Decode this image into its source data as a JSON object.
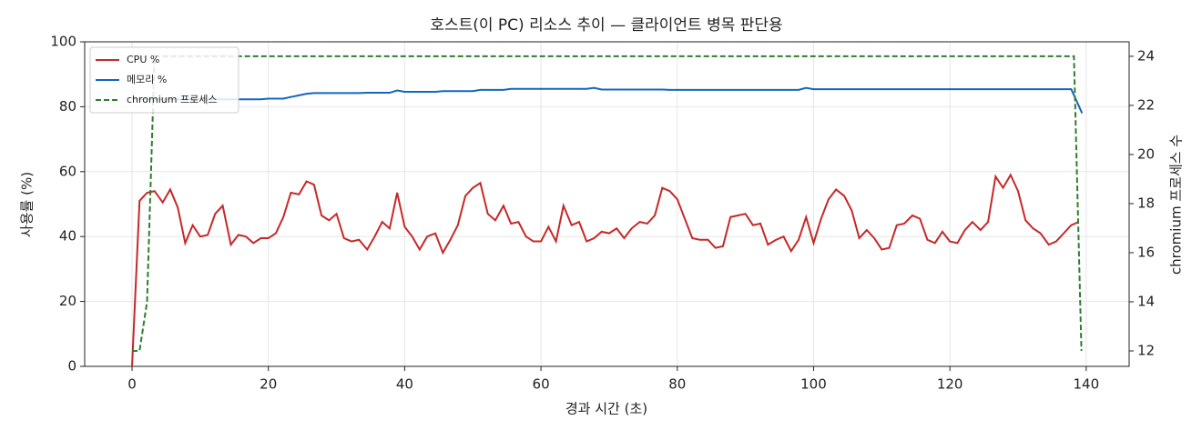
{
  "chart_data": {
    "type": "line",
    "title": "호스트(이 PC) 리소스 추이 — 클라이언트 병목 판단용",
    "x_label": "경과 시간 (초)",
    "y_label": "사용률 (%)",
    "y2_label": "chromium 프로세스 수",
    "xlim": [
      -6.95,
      146.3
    ],
    "xticks": [
      0,
      20,
      40,
      60,
      80,
      100,
      120,
      140
    ],
    "ylim": [
      0,
      100
    ],
    "yticks": [
      0,
      20,
      40,
      60,
      80,
      100
    ],
    "y2lim": [
      11.37,
      24.59
    ],
    "y2ticks": [
      12,
      14,
      16,
      18,
      20,
      22,
      24
    ],
    "grid": true,
    "legend": "upper left",
    "series": [
      {
        "name": "CPU %",
        "color": "#c62828",
        "linestyle": "solid",
        "axis": "y",
        "x": [
          0,
          1.1,
          2.2,
          3.3,
          4.5,
          5.6,
          6.7,
          7.8,
          8.9,
          10,
          11.1,
          12.2,
          13.3,
          14.5,
          15.6,
          16.7,
          17.8,
          18.9,
          20,
          21.1,
          22.2,
          23.3,
          24.5,
          25.6,
          26.7,
          27.8,
          28.9,
          30,
          31.1,
          32.2,
          33.3,
          34.5,
          35.6,
          36.7,
          37.8,
          38.9,
          40,
          41.1,
          42.2,
          43.3,
          44.5,
          45.6,
          46.7,
          47.8,
          48.9,
          50,
          51.1,
          52.2,
          53.3,
          54.5,
          55.6,
          56.7,
          57.8,
          58.9,
          60,
          61.1,
          62.2,
          63.3,
          64.5,
          65.6,
          66.7,
          67.8,
          68.9,
          70,
          71.1,
          72.2,
          73.3,
          74.5,
          75.6,
          76.7,
          77.8,
          78.9,
          80,
          81.1,
          82.2,
          83.3,
          84.5,
          85.6,
          86.7,
          87.8,
          88.9,
          90,
          91.1,
          92.2,
          93.3,
          94.5,
          95.6,
          96.7,
          97.8,
          98.9,
          100,
          101.1,
          102.2,
          103.3,
          104.5,
          105.6,
          106.7,
          107.8,
          108.9,
          110,
          111.1,
          112.2,
          113.3,
          114.5,
          115.6,
          116.7,
          117.8,
          118.9,
          120,
          121.1,
          122.2,
          123.3,
          124.5,
          125.6,
          126.7,
          127.8,
          128.9,
          130,
          131.1,
          132.2,
          133.3,
          134.5,
          135.6,
          136.7,
          137.8,
          138.9
        ],
        "values": [
          0,
          51,
          53.5,
          54,
          50.5,
          54.5,
          49,
          38,
          43.5,
          40,
          40.5,
          47,
          49.5,
          37.5,
          40.5,
          40,
          38,
          39.5,
          39.5,
          41,
          46,
          53.5,
          53,
          57,
          56,
          46.5,
          45,
          47,
          39.5,
          38.5,
          39,
          36,
          40,
          44.5,
          42.5,
          53.5,
          43,
          40,
          36,
          40,
          41,
          35,
          39,
          43.5,
          52.5,
          55,
          56.5,
          47,
          45,
          49.5,
          44,
          44.5,
          40,
          38.5,
          38.5,
          43,
          38.5,
          49.5,
          43.5,
          44.5,
          38.5,
          39.5,
          41.5,
          41,
          42.5,
          39.5,
          42.5,
          44.5,
          44,
          46.5,
          55,
          54,
          51.5,
          45.5,
          39.5,
          39,
          39,
          36.5,
          37,
          46,
          46.5,
          47,
          43.5,
          44,
          37.5,
          39,
          40,
          35.5,
          39,
          46,
          38,
          45.5,
          51.5,
          54.5,
          52.5,
          48,
          39.5,
          42,
          39.5,
          36,
          36.5,
          43.5,
          44,
          46.5,
          45.5,
          39,
          38,
          41.5,
          38.5,
          38,
          42,
          44.5,
          42,
          44.5,
          58.5,
          55,
          59,
          54,
          45,
          42.5,
          41,
          37.5,
          38.5,
          41,
          43.5,
          44.5
        ]
      },
      {
        "name": "메모리 %",
        "color": "#1565c0",
        "linestyle": "solid",
        "axis": "y",
        "x": [
          0,
          1.1,
          2.2,
          3.3,
          4.5,
          5.6,
          6.7,
          7.8,
          8.9,
          10,
          11.1,
          12.2,
          13.3,
          14.5,
          15.6,
          16.7,
          17.8,
          18.9,
          20,
          21.1,
          22.2,
          23.3,
          24.5,
          25.6,
          26.7,
          27.8,
          28.9,
          30,
          31.1,
          32.2,
          33.3,
          34.5,
          35.6,
          36.7,
          37.8,
          38.9,
          40,
          41.1,
          42.2,
          43.3,
          44.5,
          45.6,
          46.7,
          47.8,
          48.9,
          50,
          51.1,
          52.2,
          53.3,
          54.5,
          55.6,
          56.7,
          57.8,
          58.9,
          60,
          61.1,
          62.2,
          63.3,
          64.5,
          65.6,
          66.7,
          67.8,
          68.9,
          70,
          71.1,
          72.2,
          73.3,
          74.5,
          75.6,
          76.7,
          77.8,
          78.9,
          80,
          81.1,
          82.2,
          83.3,
          84.5,
          85.6,
          86.7,
          87.8,
          88.9,
          90,
          91.1,
          92.2,
          93.3,
          94.5,
          95.6,
          96.7,
          97.8,
          98.9,
          100,
          101.1,
          102.2,
          103.3,
          104.5,
          105.6,
          106.7,
          107.8,
          108.9,
          110,
          111.1,
          112.2,
          113.3,
          114.5,
          115.6,
          116.7,
          117.8,
          118.9,
          120,
          121.1,
          122.2,
          123.3,
          124.5,
          125.6,
          126.7,
          127.8,
          128.9,
          130,
          131.1,
          132.2,
          133.3,
          134.5,
          135.6,
          136.7,
          137.8,
          139.4
        ],
        "values": [
          82.3,
          82.3,
          82.3,
          82.3,
          82.3,
          82.3,
          82.3,
          82.3,
          82.3,
          82.3,
          82.3,
          82.3,
          82.3,
          82.3,
          82.3,
          82.3,
          82.3,
          82.3,
          82.5,
          82.5,
          82.5,
          83,
          83.5,
          84,
          84.2,
          84.2,
          84.2,
          84.2,
          84.2,
          84.2,
          84.2,
          84.3,
          84.3,
          84.3,
          84.3,
          85,
          84.6,
          84.6,
          84.6,
          84.6,
          84.6,
          84.8,
          84.8,
          84.8,
          84.8,
          84.8,
          85.2,
          85.2,
          85.2,
          85.2,
          85.5,
          85.5,
          85.5,
          85.5,
          85.5,
          85.5,
          85.5,
          85.5,
          85.5,
          85.5,
          85.5,
          85.8,
          85.3,
          85.3,
          85.3,
          85.3,
          85.3,
          85.3,
          85.3,
          85.3,
          85.3,
          85.2,
          85.2,
          85.2,
          85.2,
          85.2,
          85.2,
          85.2,
          85.2,
          85.2,
          85.2,
          85.2,
          85.2,
          85.2,
          85.2,
          85.2,
          85.2,
          85.2,
          85.2,
          85.8,
          85.4,
          85.4,
          85.4,
          85.4,
          85.4,
          85.4,
          85.4,
          85.4,
          85.4,
          85.4,
          85.4,
          85.4,
          85.4,
          85.4,
          85.4,
          85.4,
          85.4,
          85.4,
          85.4,
          85.4,
          85.4,
          85.4,
          85.4,
          85.4,
          85.4,
          85.4,
          85.4,
          85.4,
          85.4,
          85.4,
          85.4,
          85.4,
          85.4,
          85.4,
          85.4,
          78
        ]
      },
      {
        "name": "chromium 프로세스",
        "color": "#2e7d32",
        "linestyle": "dashed",
        "axis": "y2",
        "x": [
          0,
          1.1,
          2.2,
          3.3,
          138.2,
          139.3
        ],
        "values": [
          12,
          12,
          14,
          24,
          24,
          12
        ]
      }
    ]
  }
}
